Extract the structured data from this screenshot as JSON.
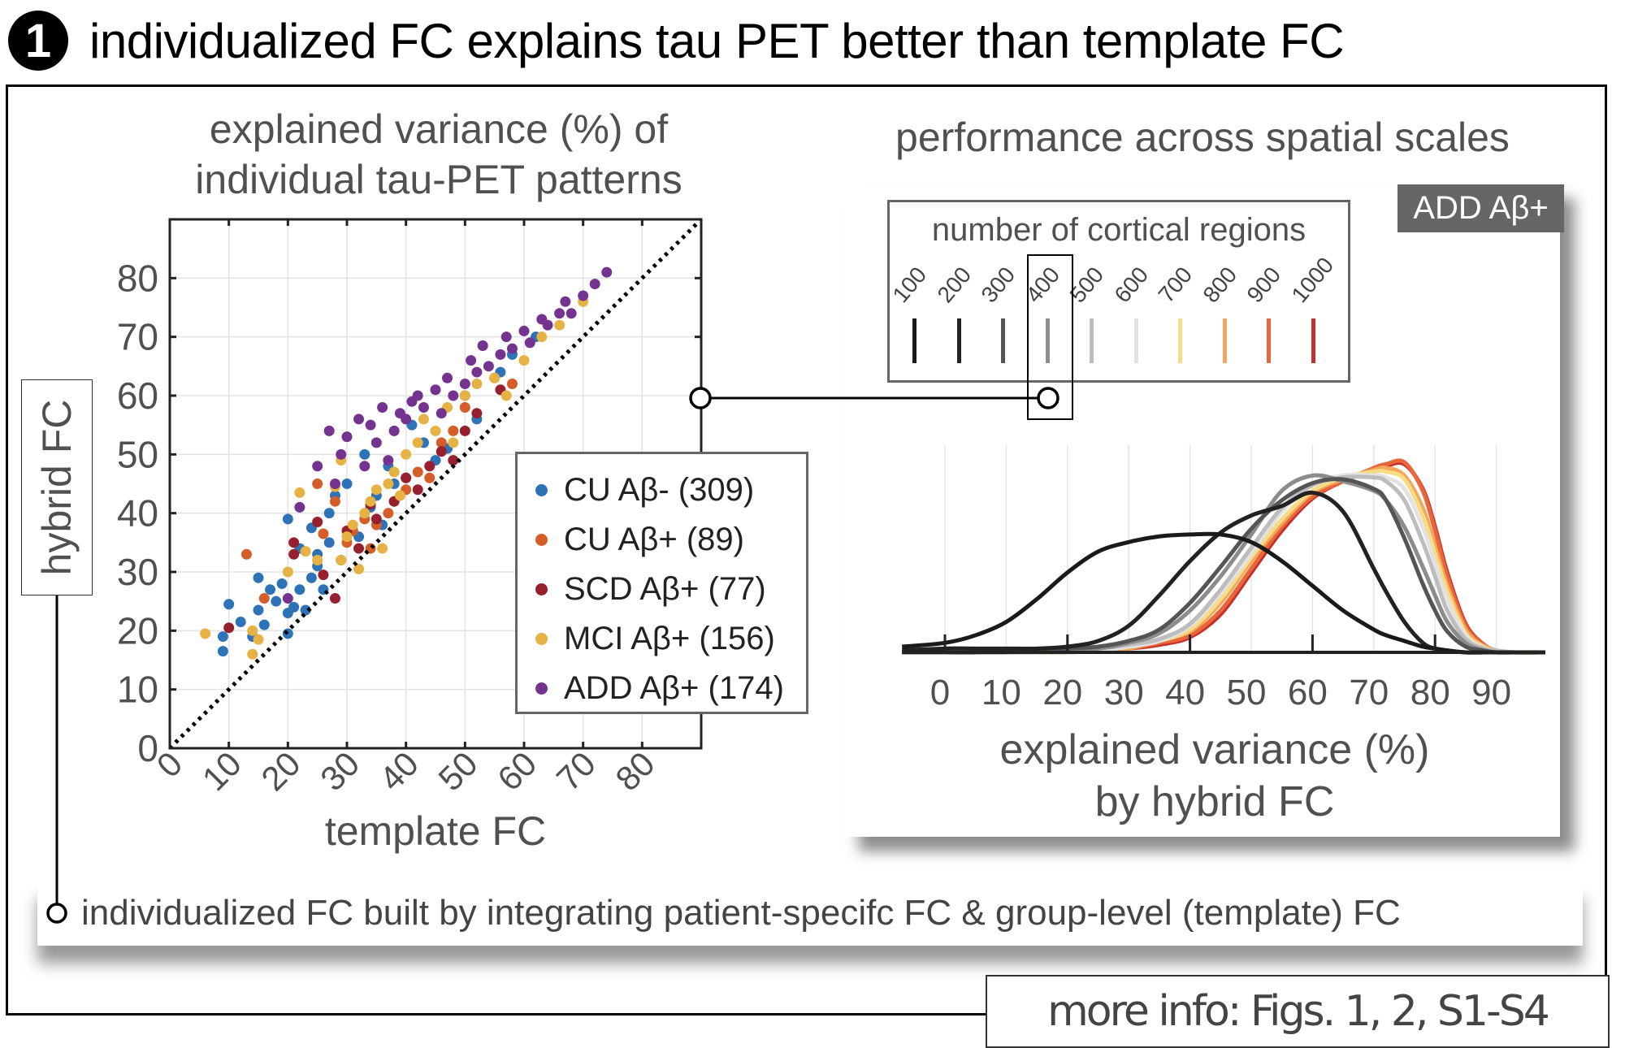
{
  "header": {
    "number": "1",
    "title": "individualized FC explains tau PET better than template FC"
  },
  "left_panel": {
    "title_line1": "explained variance (%) of",
    "title_line2": "individual tau-PET patterns",
    "y_axis_box_label": "hybrid FC"
  },
  "right_panel": {
    "title": "performance across spatial scales",
    "badge": "ADD Aβ+",
    "region_legend_title": "number of cortical regions",
    "highlighted_region": "400"
  },
  "caption": "individualized FC built by integrating patient-specifc FC & group-level (template) FC",
  "more_info": "more info: Figs. 1, 2, S1-S4",
  "chart_data": [
    {
      "type": "scatter",
      "title": "explained variance (%) of individual tau-PET patterns",
      "xlabel": "template FC",
      "ylabel": "hybrid FC",
      "xlim": [
        0,
        90
      ],
      "ylim": [
        0,
        90
      ],
      "xticks": [
        0,
        10,
        20,
        30,
        40,
        50,
        60,
        70,
        80
      ],
      "yticks": [
        0,
        10,
        20,
        30,
        40,
        50,
        60,
        70,
        80
      ],
      "grid": true,
      "identity_line": true,
      "legend_position": "bottom-right",
      "series": [
        {
          "name": "CU Aβ- (309)",
          "color": "#2e72b8",
          "points": [
            [
              9,
              16.5
            ],
            [
              9,
              19
            ],
            [
              10,
              24.5
            ],
            [
              12,
              21.5
            ],
            [
              14,
              19
            ],
            [
              15,
              23.5
            ],
            [
              15,
              29
            ],
            [
              16,
              21
            ],
            [
              17,
              27
            ],
            [
              18,
              25
            ],
            [
              19,
              28
            ],
            [
              20,
              19.5
            ],
            [
              20,
              23
            ],
            [
              20,
              39
            ],
            [
              21,
              24
            ],
            [
              22,
              27
            ],
            [
              22,
              34
            ],
            [
              23,
              23.5
            ],
            [
              24,
              29
            ],
            [
              24,
              37.5
            ],
            [
              25,
              31
            ],
            [
              25,
              33
            ],
            [
              26,
              27
            ],
            [
              27,
              35
            ],
            [
              27,
              40
            ],
            [
              28,
              43
            ],
            [
              29,
              32
            ],
            [
              30,
              45
            ],
            [
              31,
              37
            ],
            [
              32,
              36
            ],
            [
              33,
              50
            ],
            [
              34,
              41
            ],
            [
              35,
              43
            ],
            [
              36,
              38
            ],
            [
              37,
              48
            ],
            [
              38,
              45
            ],
            [
              40,
              46
            ],
            [
              41,
              55
            ],
            [
              43,
              52
            ],
            [
              45,
              49
            ],
            [
              47,
              51
            ],
            [
              50,
              60
            ],
            [
              52,
              56
            ],
            [
              56,
              64
            ],
            [
              58,
              67
            ],
            [
              62,
              70
            ]
          ]
        },
        {
          "name": "CU Aβ+ (89)",
          "color": "#d45d2a",
          "points": [
            [
              13,
              33
            ],
            [
              16,
              25.5
            ],
            [
              25,
              45
            ],
            [
              26,
              36.5
            ],
            [
              28,
              42
            ],
            [
              30,
              35
            ],
            [
              31,
              37
            ],
            [
              33,
              39
            ],
            [
              34,
              34
            ],
            [
              35,
              38
            ],
            [
              37,
              40
            ],
            [
              38,
              42
            ],
            [
              40,
              44
            ],
            [
              42,
              47
            ],
            [
              44,
              46
            ],
            [
              46,
              52
            ],
            [
              48,
              54
            ],
            [
              50,
              58
            ],
            [
              53,
              68.5
            ],
            [
              55,
              63
            ],
            [
              58,
              62
            ]
          ]
        },
        {
          "name": "SCD Aβ+ (77)",
          "color": "#96202e",
          "points": [
            [
              10,
              20.5
            ],
            [
              21,
              35
            ],
            [
              21,
              33
            ],
            [
              25,
              38.5
            ],
            [
              26,
              29.5
            ],
            [
              28,
              25.5
            ],
            [
              30,
              37
            ],
            [
              32,
              34
            ],
            [
              34,
              41.5
            ],
            [
              35,
              39
            ],
            [
              38,
              42
            ],
            [
              40,
              46
            ],
            [
              42,
              44
            ],
            [
              44,
              48
            ],
            [
              46,
              50.5
            ],
            [
              48,
              49
            ],
            [
              50,
              54
            ],
            [
              52,
              57
            ],
            [
              56,
              61
            ]
          ]
        },
        {
          "name": "MCI Aβ+ (156)",
          "color": "#e6b243",
          "points": [
            [
              6,
              19.5
            ],
            [
              14,
              16
            ],
            [
              14,
              20
            ],
            [
              15,
              18.5
            ],
            [
              20,
              30
            ],
            [
              22,
              43.5
            ],
            [
              23,
              33.5
            ],
            [
              25,
              32
            ],
            [
              28,
              44.5
            ],
            [
              29,
              49
            ],
            [
              29,
              32
            ],
            [
              30,
              36
            ],
            [
              31,
              38
            ],
            [
              32,
              30.5
            ],
            [
              33,
              40
            ],
            [
              34,
              42
            ],
            [
              35,
              44
            ],
            [
              36,
              34
            ],
            [
              37,
              45
            ],
            [
              38,
              47
            ],
            [
              39,
              43
            ],
            [
              40,
              50
            ],
            [
              42,
              52
            ],
            [
              43,
              56
            ],
            [
              45,
              54
            ],
            [
              47,
              58
            ],
            [
              48,
              52
            ],
            [
              50,
              60
            ],
            [
              52,
              62
            ],
            [
              55,
              63
            ],
            [
              57,
              60
            ],
            [
              60,
              66
            ],
            [
              63,
              70
            ],
            [
              66,
              72
            ],
            [
              70,
              76
            ]
          ]
        },
        {
          "name": "ADD Aβ+ (174)",
          "color": "#74338f",
          "points": [
            [
              20,
              25.5
            ],
            [
              22,
              41
            ],
            [
              25,
              48
            ],
            [
              27,
              54
            ],
            [
              28,
              45
            ],
            [
              29,
              50
            ],
            [
              30,
              53
            ],
            [
              32,
              56
            ],
            [
              33,
              48
            ],
            [
              34,
              55
            ],
            [
              35,
              52
            ],
            [
              36,
              58
            ],
            [
              37,
              49
            ],
            [
              38,
              54
            ],
            [
              39,
              57
            ],
            [
              40,
              56
            ],
            [
              41,
              59
            ],
            [
              42,
              60
            ],
            [
              43,
              58
            ],
            [
              45,
              61
            ],
            [
              46,
              57
            ],
            [
              47,
              63
            ],
            [
              48,
              60
            ],
            [
              50,
              62
            ],
            [
              51,
              66
            ],
            [
              52,
              64
            ],
            [
              53,
              68.5
            ],
            [
              54,
              65
            ],
            [
              56,
              67
            ],
            [
              57,
              70
            ],
            [
              58,
              68
            ],
            [
              60,
              71
            ],
            [
              61,
              69
            ],
            [
              63,
              73
            ],
            [
              64,
              72
            ],
            [
              66,
              74
            ],
            [
              67,
              76
            ],
            [
              68,
              74
            ],
            [
              70,
              77
            ],
            [
              72,
              79
            ],
            [
              74,
              81
            ]
          ]
        }
      ]
    },
    {
      "type": "line",
      "title": "performance across spatial scales",
      "subtitle": "ADD Aβ+",
      "xlabel": "explained variance (%) by hybrid FC",
      "ylabel": "",
      "xlim": [
        -7,
        98
      ],
      "ylim": [
        0,
        1.05
      ],
      "xticks": [
        0,
        10,
        20,
        30,
        40,
        50,
        60,
        70,
        80,
        90
      ],
      "major_ticks": [
        0,
        20,
        40,
        60,
        80
      ],
      "grid": true,
      "legend_title": "number of cortical regions",
      "legend_position": "top",
      "x": [
        -7,
        0,
        5,
        10,
        15,
        20,
        25,
        30,
        35,
        40,
        45,
        50,
        55,
        60,
        65,
        70,
        72,
        75,
        78,
        80,
        82,
        85,
        88,
        90,
        93,
        98
      ],
      "series": [
        {
          "name": "100",
          "color": "#1a1a1a",
          "values": [
            0.03,
            0.05,
            0.09,
            0.16,
            0.28,
            0.42,
            0.53,
            0.58,
            0.61,
            0.62,
            0.62,
            0.58,
            0.48,
            0.35,
            0.22,
            0.12,
            0.09,
            0.06,
            0.03,
            0.02,
            0.01,
            0.0,
            0.0,
            0.0,
            0.0,
            0.0
          ]
        },
        {
          "name": "200",
          "color": "#222222",
          "values": [
            0.01,
            0.02,
            0.02,
            0.02,
            0.02,
            0.03,
            0.06,
            0.14,
            0.3,
            0.48,
            0.63,
            0.72,
            0.77,
            0.84,
            0.74,
            0.44,
            0.32,
            0.16,
            0.05,
            0.02,
            0.01,
            0.0,
            0.0,
            0.0,
            0.0,
            0.0
          ]
        },
        {
          "name": "300",
          "color": "#555555",
          "values": [
            0.0,
            0.0,
            0.0,
            0.01,
            0.01,
            0.02,
            0.03,
            0.06,
            0.12,
            0.26,
            0.45,
            0.65,
            0.8,
            0.89,
            0.91,
            0.86,
            0.8,
            0.6,
            0.36,
            0.22,
            0.11,
            0.03,
            0.01,
            0.0,
            0.0,
            0.0
          ]
        },
        {
          "name": "400",
          "color": "#8c8c8c",
          "values": [
            0.0,
            0.0,
            0.0,
            0.0,
            0.01,
            0.01,
            0.02,
            0.05,
            0.1,
            0.22,
            0.4,
            0.62,
            0.85,
            0.93,
            0.9,
            0.85,
            0.8,
            0.66,
            0.45,
            0.3,
            0.16,
            0.05,
            0.01,
            0.0,
            0.0,
            0.0
          ]
        },
        {
          "name": "500",
          "color": "#bdbdbd",
          "values": [
            0.0,
            0.0,
            0.0,
            0.0,
            0.0,
            0.01,
            0.02,
            0.04,
            0.07,
            0.15,
            0.33,
            0.55,
            0.76,
            0.88,
            0.92,
            0.92,
            0.9,
            0.8,
            0.58,
            0.4,
            0.22,
            0.07,
            0.02,
            0.01,
            0.0,
            0.0
          ]
        },
        {
          "name": "600",
          "color": "#e2e2e2",
          "values": [
            0.0,
            0.0,
            0.0,
            0.0,
            0.0,
            0.0,
            0.01,
            0.03,
            0.06,
            0.14,
            0.31,
            0.52,
            0.74,
            0.88,
            0.93,
            0.93,
            0.92,
            0.86,
            0.66,
            0.47,
            0.28,
            0.09,
            0.02,
            0.01,
            0.0,
            0.0
          ]
        },
        {
          "name": "700",
          "color": "#f8dc85",
          "values": [
            0.0,
            0.0,
            0.0,
            0.0,
            0.0,
            0.0,
            0.01,
            0.03,
            0.06,
            0.12,
            0.28,
            0.5,
            0.7,
            0.85,
            0.92,
            0.95,
            0.95,
            0.91,
            0.72,
            0.52,
            0.32,
            0.1,
            0.03,
            0.01,
            0.0,
            0.0
          ]
        },
        {
          "name": "800",
          "color": "#f2a85c",
          "values": [
            0.0,
            0.0,
            0.0,
            0.0,
            0.0,
            0.0,
            0.01,
            0.02,
            0.07,
            0.11,
            0.26,
            0.48,
            0.68,
            0.84,
            0.91,
            0.96,
            0.97,
            0.93,
            0.76,
            0.56,
            0.35,
            0.12,
            0.03,
            0.01,
            0.0,
            0.0
          ]
        },
        {
          "name": "900",
          "color": "#e8663a",
          "values": [
            0.0,
            0.0,
            0.0,
            0.0,
            0.0,
            0.0,
            0.01,
            0.02,
            0.05,
            0.09,
            0.22,
            0.44,
            0.66,
            0.82,
            0.9,
            0.97,
            0.99,
            1.0,
            0.85,
            0.64,
            0.4,
            0.14,
            0.04,
            0.01,
            0.0,
            0.0
          ]
        },
        {
          "name": "1000",
          "color": "#c4312b",
          "values": [
            0.0,
            0.0,
            0.0,
            0.0,
            0.0,
            0.0,
            0.01,
            0.02,
            0.04,
            0.08,
            0.2,
            0.42,
            0.64,
            0.81,
            0.9,
            0.96,
            0.98,
            0.99,
            0.86,
            0.66,
            0.42,
            0.15,
            0.04,
            0.01,
            0.0,
            0.0
          ]
        }
      ]
    }
  ]
}
